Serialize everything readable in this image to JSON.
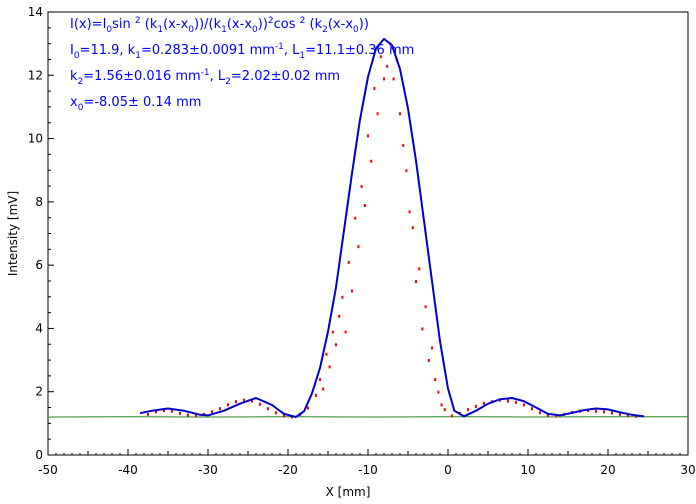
{
  "chart_data": {
    "type": "scatter",
    "xlabel": "X [mm]",
    "ylabel": "Intensity [mV]",
    "xlim": [
      -50,
      30
    ],
    "ylim": [
      0,
      14
    ],
    "x_ticks": [
      -50,
      -40,
      -30,
      -20,
      -10,
      0,
      10,
      20,
      30
    ],
    "y_ticks": [
      0,
      2,
      4,
      6,
      8,
      10,
      12,
      14
    ],
    "grid": false,
    "annotations": [
      "I(x)=I0sin 2 (k1(x-x0))/(k1(x-x0))2cos 2 (k2(x-x0))",
      "I0=11.9,  k1=0.283±0.0091 mm-1,   L1=11.1±0.36 mm",
      "k2=1.56±0.016 mm-1,   L2=2.02±0.02 mm",
      "x0=-8.05±   0.14 mm"
    ],
    "fit_parameters": {
      "I0": 11.9,
      "k1": 0.283,
      "k1_err": 0.0091,
      "L1": 11.1,
      "L1_err": 0.36,
      "k2": 1.56,
      "k2_err": 0.016,
      "L2": 2.02,
      "L2_err": 0.02,
      "x0": -8.05,
      "x0_err": 0.14
    },
    "series": [
      {
        "name": "",
        "kind": "line",
        "color": "#0000cc",
        "x": [
          -38.5,
          -37,
          -35,
          -33,
          -31,
          -30,
          -28,
          -26,
          -24,
          -22,
          -20.5,
          -19,
          -18,
          -17,
          -16,
          -15,
          -14,
          -13,
          -12,
          -11,
          -10,
          -9,
          -8,
          -7,
          -6,
          -5,
          -4,
          -3,
          -2,
          -1,
          0,
          0.8,
          2,
          3.5,
          5,
          6.5,
          8,
          9.5,
          11,
          12.5,
          14,
          15.5,
          17,
          18.5,
          20,
          21.5,
          23,
          24.5
        ],
        "y": [
          1.32,
          1.4,
          1.47,
          1.4,
          1.27,
          1.25,
          1.4,
          1.62,
          1.8,
          1.58,
          1.3,
          1.2,
          1.38,
          1.95,
          2.75,
          3.9,
          5.3,
          7.1,
          8.9,
          10.6,
          11.95,
          12.85,
          13.15,
          12.95,
          12.2,
          10.95,
          9.3,
          7.4,
          5.5,
          3.6,
          2.1,
          1.4,
          1.22,
          1.4,
          1.62,
          1.76,
          1.8,
          1.7,
          1.5,
          1.3,
          1.25,
          1.33,
          1.42,
          1.47,
          1.44,
          1.35,
          1.27,
          1.22
        ]
      },
      {
        "name": "",
        "kind": "line",
        "color": "#228b22",
        "x": [
          -50,
          -40,
          -30,
          -20,
          -10,
          0,
          10,
          20,
          30
        ],
        "y": [
          1.2,
          1.21,
          1.2,
          1.21,
          1.2,
          1.21,
          1.2,
          1.21,
          1.21
        ]
      },
      {
        "name": "",
        "kind": "points",
        "color": "#ff0000",
        "x": [
          -37.5,
          -36.5,
          -35.5,
          -34.5,
          -33.5,
          -32.5,
          -31.5,
          -30.5,
          -29.5,
          -28.5,
          -27.5,
          -26.5,
          -25.5,
          -24.5,
          -23.5,
          -22.5,
          -21.5,
          -20.5,
          -19.5,
          -18.5,
          -17.5,
          -16.5,
          -16,
          -15.6,
          -15.2,
          -14.8,
          -14.4,
          -14,
          -13.6,
          -13.2,
          -12.8,
          -12.4,
          -12,
          -11.6,
          -11.2,
          -10.8,
          -10.4,
          -10,
          -9.6,
          -9.2,
          -8.8,
          -8.4,
          -8,
          -7.6,
          -7.2,
          -6.8,
          -6.4,
          -6,
          -5.6,
          -5.2,
          -4.8,
          -4.4,
          -4,
          -3.6,
          -3.2,
          -2.8,
          -2.4,
          -2,
          -1.6,
          -1.2,
          -0.8,
          -0.4,
          0.5,
          1.5,
          2.5,
          3.5,
          4.5,
          5.5,
          6.5,
          7.5,
          8.5,
          9.5,
          10.5,
          11.5,
          12.5,
          13.5,
          14.5,
          15.5,
          16.5,
          17.5,
          18.5,
          19.5,
          20.5,
          21.5,
          22.5,
          23.5
        ],
        "y": [
          1.3,
          1.38,
          1.42,
          1.4,
          1.33,
          1.28,
          1.25,
          1.3,
          1.38,
          1.48,
          1.6,
          1.7,
          1.75,
          1.72,
          1.62,
          1.48,
          1.35,
          1.25,
          1.22,
          1.3,
          1.5,
          1.9,
          2.4,
          2.1,
          3.2,
          2.8,
          3.9,
          3.5,
          4.4,
          5.0,
          3.9,
          6.1,
          5.2,
          7.5,
          6.6,
          8.5,
          7.9,
          10.1,
          9.3,
          11.6,
          10.8,
          12.6,
          11.9,
          12.3,
          13.0,
          11.9,
          12.5,
          10.8,
          9.8,
          9.0,
          7.7,
          7.2,
          5.5,
          5.9,
          4.0,
          4.7,
          3.0,
          3.4,
          2.4,
          2.0,
          1.6,
          1.45,
          1.25,
          1.33,
          1.45,
          1.55,
          1.65,
          1.7,
          1.75,
          1.72,
          1.68,
          1.6,
          1.48,
          1.35,
          1.27,
          1.25,
          1.3,
          1.36,
          1.4,
          1.42,
          1.4,
          1.38,
          1.34,
          1.3,
          1.26,
          1.24
        ]
      }
    ]
  }
}
